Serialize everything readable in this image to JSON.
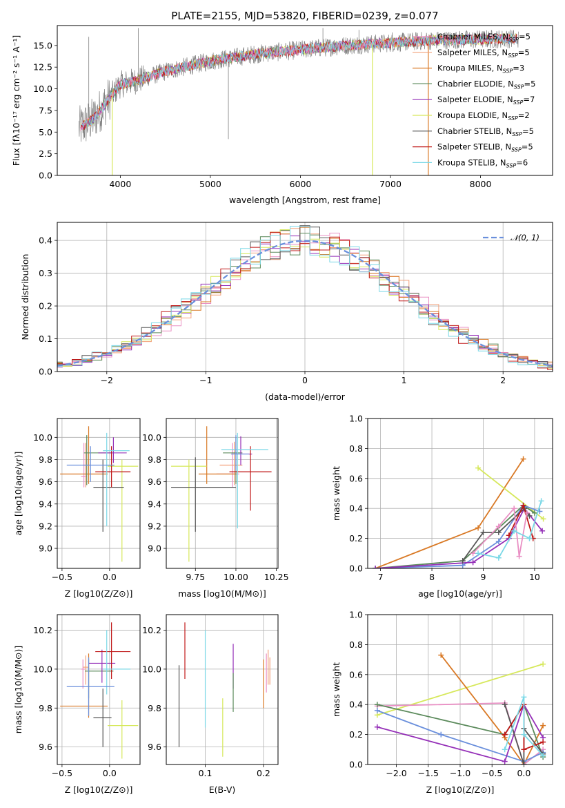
{
  "colors": {
    "chabrier_miles": "#e98fc4",
    "salpeter_miles": "#f2a07a",
    "kroupa_miles": "#d97925",
    "chabrier_elodie": "#5b8a5b",
    "salpeter_elodie": "#9530b8",
    "kroupa_elodie": "#d6e85a",
    "chabrier_stelib": "#555555",
    "salpeter_stelib": "#c01818",
    "kroupa_stelib": "#7ad8e6",
    "blue_extra": "#6a8fdc",
    "spectrum": "#7f7f7f",
    "gauss": "#6a8fdc"
  },
  "chart_data": [
    {
      "id": "spectrum",
      "type": "line",
      "title": "PLATE=2155, MJD=53820, FIBERID=0239, z=0.077",
      "xlabel": "wavelength [Angstrom, rest frame]",
      "ylabel": "Flux [fλ10⁻¹⁷ erg cm⁻² s⁻¹ A⁻¹]",
      "xlim": [
        3300,
        8800
      ],
      "ylim": [
        0,
        17.3
      ],
      "xticks": [
        4000,
        5000,
        6000,
        7000,
        8000
      ],
      "yticks": [
        0.0,
        2.5,
        5.0,
        7.5,
        10.0,
        12.5,
        15.0
      ],
      "legend": [
        "Chabrier MILES, N_SSP=5",
        "Salpeter MILES, N_SSP=5",
        "Kroupa MILES, N_SSP=3",
        "Chabrier ELODIE, N_SSP=5",
        "Salpeter ELODIE, N_SSP=7",
        "Kroupa ELODIE, N_SSP=2",
        "Chabrier STELIB, N_SSP=5",
        "Salpeter STELIB, N_SSP=5",
        "Kroupa STELIB, N_SSP=6"
      ],
      "continuum": [
        {
          "x": 3550,
          "y": 5.5
        },
        {
          "x": 3700,
          "y": 6.5
        },
        {
          "x": 3850,
          "y": 8.5
        },
        {
          "x": 4000,
          "y": 10.5
        },
        {
          "x": 4200,
          "y": 11.0
        },
        {
          "x": 4500,
          "y": 12.0
        },
        {
          "x": 5000,
          "y": 13.2
        },
        {
          "x": 5500,
          "y": 14.0
        },
        {
          "x": 6000,
          "y": 14.5
        },
        {
          "x": 6500,
          "y": 15.0
        },
        {
          "x": 7000,
          "y": 15.3
        },
        {
          "x": 7500,
          "y": 15.6
        },
        {
          "x": 8000,
          "y": 15.7
        },
        {
          "x": 8400,
          "y": 15.8
        }
      ]
    },
    {
      "id": "residuals",
      "type": "histogram",
      "xlabel": "(data-model)/error",
      "ylabel": "Normed distribution",
      "xlim": [
        -2.5,
        2.5
      ],
      "ylim": [
        0,
        0.455
      ],
      "xticks": [
        -2,
        -1,
        0,
        1,
        2
      ],
      "yticks": [
        0.0,
        0.1,
        0.2,
        0.3,
        0.4
      ],
      "legend": [
        "𝒩(0, 1)"
      ],
      "legend_position": "top-right"
    },
    {
      "id": "age_vs_Z",
      "type": "errorbar",
      "xlabel": "Z [log10(Z/Z⊙)]",
      "ylabel": "age  [log10(age/yr)]",
      "xlim": [
        -0.55,
        0.32
      ],
      "ylim": [
        8.82,
        10.17
      ],
      "xticks": [
        -0.5,
        0.0
      ],
      "yticks": [
        9.0,
        9.2,
        9.4,
        9.6,
        9.8,
        10.0
      ],
      "points": [
        {
          "c": "chabrier_miles",
          "x": -0.27,
          "y": 9.65,
          "xl": -0.3,
          "xh": -0.24,
          "yl": 9.55,
          "yh": 9.95
        },
        {
          "c": "salpeter_miles",
          "x": -0.25,
          "y": 9.75,
          "xl": -0.28,
          "xh": -0.22,
          "yl": 9.55,
          "yh": 9.95
        },
        {
          "c": "kroupa_miles",
          "x": -0.22,
          "y": 9.67,
          "xl": -0.52,
          "xh": -0.02,
          "yl": 9.58,
          "yh": 10.1
        },
        {
          "c": "chabrier_elodie",
          "x": -0.24,
          "y": 9.86,
          "xl": -0.27,
          "xh": 0.02,
          "yl": 9.57,
          "yh": 10.02
        },
        {
          "c": "salpeter_elodie",
          "x": 0.04,
          "y": 9.86,
          "xl": -0.12,
          "xh": 0.18,
          "yl": 9.77,
          "yh": 10.0
        },
        {
          "c": "kroupa_elodie",
          "x": 0.13,
          "y": 9.74,
          "xl": -0.02,
          "xh": 0.3,
          "yl": 8.88,
          "yh": 9.8
        },
        {
          "c": "chabrier_stelib",
          "x": -0.07,
          "y": 9.55,
          "xl": -0.17,
          "xh": 0.15,
          "yl": 9.15,
          "yh": 9.8
        },
        {
          "c": "salpeter_stelib",
          "x": 0.02,
          "y": 9.69,
          "xl": -0.15,
          "xh": 0.22,
          "yl": 9.55,
          "yh": 9.92
        },
        {
          "c": "kroupa_stelib",
          "x": -0.03,
          "y": 9.88,
          "xl": -0.07,
          "xh": 0.21,
          "yl": 9.2,
          "yh": 10.04
        },
        {
          "c": "blue_extra",
          "x": -0.2,
          "y": 9.75,
          "xl": -0.45,
          "xh": 0.05,
          "yl": 9.6,
          "yh": 9.92
        }
      ]
    },
    {
      "id": "age_vs_mass",
      "type": "errorbar",
      "xlabel": "mass [log10(M/M⊙)]",
      "ylabel": "",
      "xlim": [
        9.57,
        10.26
      ],
      "ylim": [
        8.82,
        10.17
      ],
      "xticks": [
        9.75,
        10.0,
        10.25
      ],
      "xticklabels": [
        "9.75",
        "10.00",
        "10.25"
      ],
      "yticks": [
        9.0,
        9.2,
        9.4,
        9.6,
        9.8,
        10.0
      ],
      "points": [
        {
          "c": "chabrier_miles",
          "x": 9.98,
          "y": 9.67,
          "xl": 9.88,
          "xh": 10.02,
          "yl": 9.55,
          "yh": 9.95
        },
        {
          "c": "salpeter_miles",
          "x": 9.99,
          "y": 9.75,
          "xl": 9.9,
          "xh": 10.04,
          "yl": 9.57,
          "yh": 9.96
        },
        {
          "c": "kroupa_miles",
          "x": 9.82,
          "y": 9.67,
          "xl": 9.77,
          "xh": 10.0,
          "yl": 9.58,
          "yh": 10.1
        },
        {
          "c": "chabrier_elodie",
          "x": 10.0,
          "y": 9.86,
          "xl": 9.92,
          "xh": 10.04,
          "yl": 9.58,
          "yh": 10.0
        },
        {
          "c": "salpeter_elodie",
          "x": 10.03,
          "y": 9.85,
          "xl": 9.98,
          "xh": 10.1,
          "yl": 9.75,
          "yh": 10.01
        },
        {
          "c": "kroupa_elodie",
          "x": 9.71,
          "y": 9.74,
          "xl": 9.6,
          "xh": 9.82,
          "yl": 8.88,
          "yh": 9.8
        },
        {
          "c": "chabrier_stelib",
          "x": 9.75,
          "y": 9.55,
          "xl": 9.6,
          "xh": 10.0,
          "yl": 9.15,
          "yh": 9.82
        },
        {
          "c": "salpeter_stelib",
          "x": 10.09,
          "y": 9.69,
          "xl": 9.96,
          "xh": 10.22,
          "yl": 9.34,
          "yh": 9.92
        },
        {
          "c": "kroupa_stelib",
          "x": 10.01,
          "y": 9.89,
          "xl": 9.91,
          "xh": 10.2,
          "yl": 9.18,
          "yh": 10.04
        },
        {
          "c": "blue_extra",
          "x": 10.0,
          "y": 9.85,
          "xl": 9.97,
          "xh": 10.08,
          "yl": 9.7,
          "yh": 10.02
        }
      ]
    },
    {
      "id": "weight_vs_age",
      "type": "line",
      "xlabel": "age  [log10(age/yr)]",
      "ylabel": "mass weight",
      "xlim": [
        6.75,
        10.35
      ],
      "ylim": [
        0,
        1.0
      ],
      "xticks": [
        7,
        8,
        9,
        10
      ],
      "yticks": [
        0.0,
        0.2,
        0.4,
        0.6,
        0.8,
        1.0
      ],
      "series": [
        {
          "c": "kroupa_miles",
          "pts": [
            [
              6.9,
              0.0
            ],
            [
              8.9,
              0.27
            ],
            [
              9.78,
              0.73
            ]
          ]
        },
        {
          "c": "kroupa_elodie",
          "pts": [
            [
              8.9,
              0.67
            ],
            [
              10.17,
              0.33
            ]
          ]
        },
        {
          "c": "chabrier_elodie",
          "pts": [
            [
              6.9,
              0.0
            ],
            [
              8.6,
              0.05
            ],
            [
              9.78,
              0.42
            ],
            [
              10.0,
              0.37
            ]
          ]
        },
        {
          "c": "blue_extra",
          "pts": [
            [
              6.9,
              0.0
            ],
            [
              8.6,
              0.02
            ],
            [
              9.3,
              0.18
            ],
            [
              9.78,
              0.42
            ],
            [
              10.1,
              0.38
            ]
          ]
        },
        {
          "c": "salpeter_elodie",
          "pts": [
            [
              6.9,
              0.0
            ],
            [
              8.8,
              0.04
            ],
            [
              9.5,
              0.2
            ],
            [
              9.8,
              0.4
            ],
            [
              10.15,
              0.25
            ]
          ]
        },
        {
          "c": "chabrier_stelib",
          "pts": [
            [
              8.6,
              0.05
            ],
            [
              9.0,
              0.24
            ],
            [
              9.3,
              0.24
            ],
            [
              9.8,
              0.4
            ],
            [
              9.9,
              0.35
            ]
          ]
        },
        {
          "c": "salpeter_stelib",
          "pts": [
            [
              9.5,
              0.22
            ],
            [
              9.78,
              0.42
            ],
            [
              9.97,
              0.2
            ]
          ]
        },
        {
          "c": "chabrier_miles",
          "pts": [
            [
              8.8,
              0.1
            ],
            [
              9.3,
              0.28
            ],
            [
              9.6,
              0.4
            ],
            [
              9.7,
              0.08
            ],
            [
              9.85,
              0.37
            ]
          ]
        },
        {
          "c": "kroupa_stelib",
          "pts": [
            [
              8.9,
              0.1
            ],
            [
              9.3,
              0.07
            ],
            [
              9.6,
              0.25
            ],
            [
              9.9,
              0.2
            ],
            [
              10.13,
              0.45
            ]
          ]
        }
      ]
    },
    {
      "id": "mass_vs_Z",
      "type": "errorbar",
      "xlabel": "Z [log10(Z/Z⊙)]",
      "ylabel": "mass [log10(M/M⊙)]",
      "xlim": [
        -0.55,
        0.32
      ],
      "ylim": [
        9.51,
        10.28
      ],
      "xticks": [
        -0.5,
        0.0
      ],
      "yticks": [
        9.6,
        9.8,
        10.0,
        10.2
      ],
      "points": [
        {
          "c": "chabrier_miles",
          "x": -0.28,
          "y": 10.0,
          "xl": -0.3,
          "xh": -0.26,
          "yl": 9.9,
          "yh": 10.05
        },
        {
          "c": "salpeter_miles",
          "x": -0.25,
          "y": 10.01,
          "xl": -0.28,
          "xh": -0.22,
          "yl": 9.92,
          "yh": 10.07
        },
        {
          "c": "kroupa_miles",
          "x": -0.22,
          "y": 9.81,
          "xl": -0.52,
          "xh": -0.02,
          "yl": 9.75,
          "yh": 10.08
        },
        {
          "c": "chabrier_elodie",
          "x": -0.22,
          "y": 9.99,
          "xl": -0.26,
          "xh": 0.04,
          "yl": 9.85,
          "yh": 10.05
        },
        {
          "c": "salpeter_elodie",
          "x": -0.08,
          "y": 10.03,
          "xl": -0.22,
          "xh": 0.06,
          "yl": 9.93,
          "yh": 10.1
        },
        {
          "c": "kroupa_elodie",
          "x": 0.13,
          "y": 9.71,
          "xl": -0.02,
          "xh": 0.3,
          "yl": 9.54,
          "yh": 9.84
        },
        {
          "c": "chabrier_stelib",
          "x": -0.07,
          "y": 9.75,
          "xl": -0.17,
          "xh": 0.02,
          "yl": 9.6,
          "yh": 9.9
        },
        {
          "c": "salpeter_stelib",
          "x": 0.02,
          "y": 10.09,
          "xl": -0.15,
          "xh": 0.22,
          "yl": 9.95,
          "yh": 10.24
        },
        {
          "c": "kroupa_stelib",
          "x": -0.03,
          "y": 10.0,
          "xl": -0.07,
          "xh": 0.22,
          "yl": 9.87,
          "yh": 10.2
        },
        {
          "c": "blue_extra",
          "x": -0.22,
          "y": 9.91,
          "xl": -0.45,
          "xh": 0.05,
          "yl": 9.76,
          "yh": 10.06
        }
      ]
    },
    {
      "id": "mass_vs_ebv",
      "type": "errorbar",
      "xlabel": "E(B-V)",
      "ylabel": "",
      "xlim": [
        0.033,
        0.225
      ],
      "ylim": [
        9.51,
        10.28
      ],
      "xticks": [
        0.1,
        0.2
      ],
      "yticks": [
        9.6,
        9.8,
        10.0,
        10.2
      ],
      "bars": [
        {
          "c": "chabrier_stelib",
          "x": 0.055,
          "yl": 9.6,
          "yh": 10.02
        },
        {
          "c": "salpeter_stelib",
          "x": 0.065,
          "yl": 9.95,
          "yh": 10.24
        },
        {
          "c": "kroupa_stelib",
          "x": 0.1,
          "yl": 9.7,
          "yh": 10.2
        },
        {
          "c": "kroupa_elodie",
          "x": 0.13,
          "yl": 9.55,
          "yh": 9.85
        },
        {
          "c": "salpeter_elodie",
          "x": 0.148,
          "yl": 9.9,
          "yh": 10.13
        },
        {
          "c": "chabrier_elodie",
          "x": 0.148,
          "yl": 9.78,
          "yh": 9.98
        },
        {
          "c": "chabrier_miles",
          "x": 0.205,
          "yl": 9.88,
          "yh": 10.08
        },
        {
          "c": "salpeter_miles",
          "x": 0.208,
          "yl": 9.92,
          "yh": 10.1
        },
        {
          "c": "kroupa_miles",
          "x": 0.2,
          "yl": 9.8,
          "yh": 10.05
        },
        {
          "c": "salpeter_miles",
          "x": 0.211,
          "yl": 9.92,
          "yh": 10.06
        }
      ]
    },
    {
      "id": "weight_vs_Z",
      "type": "line",
      "xlabel": "Z [log10(Z/Z⊙)]",
      "ylabel": "mass weight",
      "xlim": [
        -2.45,
        0.45
      ],
      "ylim": [
        0,
        1.0
      ],
      "xticks": [
        -2.0,
        -1.5,
        -1.0,
        -0.5,
        0.0
      ],
      "yticks": [
        0.0,
        0.2,
        0.4,
        0.6,
        0.8,
        1.0
      ],
      "series": [
        {
          "c": "kroupa_elodie",
          "pts": [
            [
              -2.3,
              0.33
            ],
            [
              0.3,
              0.67
            ]
          ]
        },
        {
          "c": "kroupa_miles",
          "pts": [
            [
              -1.3,
              0.73
            ],
            [
              -0.3,
              0.18
            ],
            [
              0.0,
              0.0
            ],
            [
              0.3,
              0.26
            ]
          ]
        },
        {
          "c": "chabrier_miles",
          "pts": [
            [
              -2.3,
              0.39
            ],
            [
              -0.3,
              0.41
            ],
            [
              0.0,
              0.0
            ],
            [
              0.3,
              0.1
            ]
          ]
        },
        {
          "c": "chabrier_elodie",
          "pts": [
            [
              -2.3,
              0.4
            ],
            [
              -0.3,
              0.2
            ],
            [
              0.0,
              0.4
            ],
            [
              0.3,
              0.05
            ]
          ]
        },
        {
          "c": "blue_extra",
          "pts": [
            [
              -2.3,
              0.36
            ],
            [
              -1.3,
              0.2
            ],
            [
              0.0,
              0.02
            ],
            [
              0.3,
              0.08
            ]
          ]
        },
        {
          "c": "salpeter_elodie",
          "pts": [
            [
              -2.3,
              0.25
            ],
            [
              -0.3,
              0.02
            ],
            [
              0.0,
              0.4
            ],
            [
              0.3,
              0.18
            ]
          ]
        },
        {
          "c": "chabrier_stelib",
          "pts": [
            [
              -0.3,
              0.4
            ],
            [
              0.0,
              0.0
            ],
            [
              0.0,
              0.24
            ],
            [
              0.3,
              0.07
            ]
          ]
        },
        {
          "c": "salpeter_stelib",
          "pts": [
            [
              -0.3,
              0.2
            ],
            [
              0.0,
              0.4
            ],
            [
              0.0,
              0.1
            ],
            [
              0.3,
              0.15
            ]
          ]
        },
        {
          "c": "kroupa_stelib",
          "pts": [
            [
              -0.3,
              0.1
            ],
            [
              0.0,
              0.45
            ],
            [
              0.0,
              0.2
            ],
            [
              0.3,
              0.06
            ]
          ]
        }
      ]
    }
  ]
}
